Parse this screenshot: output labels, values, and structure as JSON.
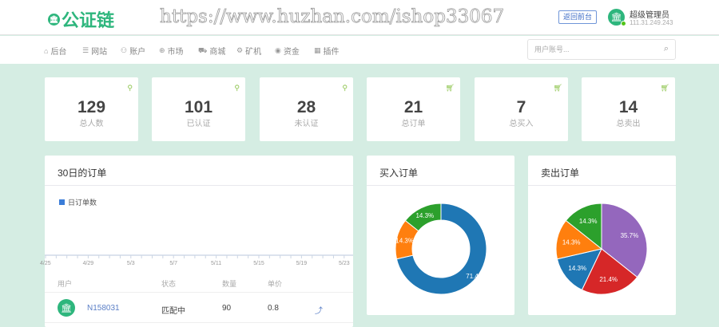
{
  "header": {
    "logo_text": "公证链",
    "back_button": "返回前台",
    "user_name": "超级管理员",
    "user_ip": "111.31.249.243"
  },
  "nav": [
    {
      "icon": "home-icon",
      "glyph": "⌂",
      "label": "后台"
    },
    {
      "icon": "list-icon",
      "glyph": "☰",
      "label": "网站"
    },
    {
      "icon": "users-icon",
      "glyph": "⚇",
      "label": "账户"
    },
    {
      "icon": "globe-icon",
      "glyph": "⊕",
      "label": "市场"
    },
    {
      "icon": "cart-icon",
      "glyph": "⛟",
      "label": "商城"
    },
    {
      "icon": "gear-icon",
      "glyph": "⚙",
      "label": "矿机"
    },
    {
      "icon": "coin-icon",
      "glyph": "◉",
      "label": "资金"
    },
    {
      "icon": "grid-icon",
      "glyph": "▦",
      "label": "插件"
    }
  ],
  "search": {
    "placeholder": "用户账号..."
  },
  "stats": [
    {
      "value": "129",
      "label": "总人数",
      "icon": "user-icon"
    },
    {
      "value": "101",
      "label": "已认证",
      "icon": "user-icon"
    },
    {
      "value": "28",
      "label": "未认证",
      "icon": "user-icon"
    },
    {
      "value": "21",
      "label": "总订单",
      "icon": "cart-icon"
    },
    {
      "value": "7",
      "label": "总买入",
      "icon": "cart-icon"
    },
    {
      "value": "14",
      "label": "总卖出",
      "icon": "cart-icon"
    }
  ],
  "orders_panel": {
    "title": "30日的订单",
    "table_headers": [
      "用户",
      "状态",
      "数量",
      "单价"
    ],
    "rows": [
      {
        "user": "N158031",
        "status": "匹配中",
        "quantity": "90",
        "price": "0.8"
      }
    ]
  },
  "watermark": "https://www.huzhan.com/ishop33067",
  "chart_data": [
    {
      "type": "line",
      "title": "",
      "legend": [
        "日订单数"
      ],
      "legend_placement": "top-left",
      "x_ticks": [
        "4/25",
        "4/29",
        "5/3",
        "5/7",
        "5/11",
        "5/15",
        "5/19",
        "5/23"
      ],
      "series": [
        {
          "name": "日订单数",
          "values": []
        }
      ],
      "color": "#3b7dd8"
    },
    {
      "type": "pie",
      "variant": "donut",
      "title": "买入订单",
      "values": [
        71.4,
        14.3,
        14.3
      ],
      "labels": [
        "71.4%",
        "14.3%",
        "14.3%"
      ],
      "colors": [
        "#1f77b4",
        "#ff7f0e",
        "#2ca02c"
      ]
    },
    {
      "type": "pie",
      "title": "卖出订单",
      "values": [
        35.7,
        21.4,
        14.3,
        14.3,
        14.3
      ],
      "labels": [
        "35.7%",
        "21.4%",
        "14.3%",
        "14.3%",
        "14.3%"
      ],
      "colors": [
        "#9467bd",
        "#d62728",
        "#1f77b4",
        "#ff7f0e",
        "#2ca02c"
      ]
    }
  ]
}
